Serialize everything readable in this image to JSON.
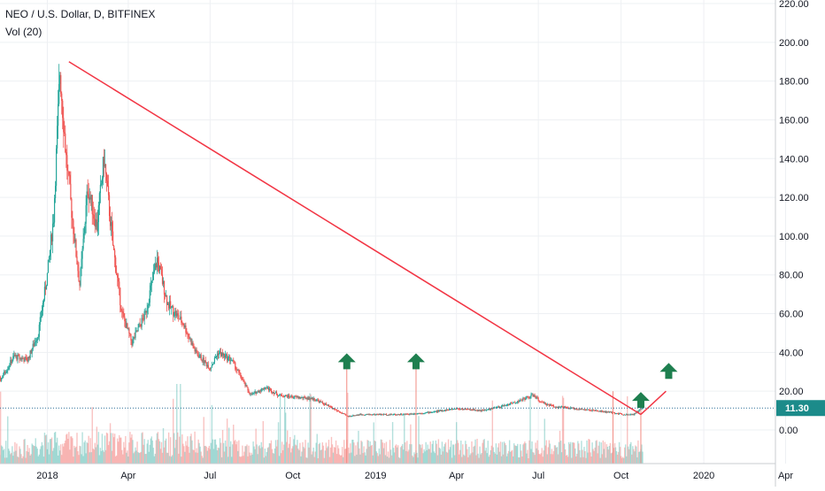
{
  "legend": {
    "symbol_line": "NEO / U.S. Dollar, D, BITFINEX",
    "volume_line": "Vol (20)"
  },
  "colors": {
    "up": "#26a69a",
    "down": "#ef5350",
    "trendline": "#f23645",
    "arrow": "#1e7f4f",
    "price_line": "#2a6f97",
    "grid": "#eef0f3",
    "axis_text": "#131722",
    "last_price_bg": "#1c8b8a"
  },
  "chart_data": {
    "type": "candlestick",
    "title": "NEO / U.S. Dollar, D, BITFINEX",
    "indicators": [
      "Vol (20)"
    ],
    "x_tick_labels": [
      "2018",
      "Apr",
      "Jul",
      "Oct",
      "2019",
      "Apr",
      "Jul",
      "Oct",
      "2020",
      "Apr"
    ],
    "y_tick_labels": [
      "0.00",
      "20.00",
      "40.00",
      "60.00",
      "80.00",
      "100.00",
      "120.00",
      "140.00",
      "160.00",
      "180.00",
      "200.00",
      "220.00"
    ],
    "y_range": [
      -10,
      222
    ],
    "last_price": 11.3,
    "last_price_label": "11.30",
    "price_path": [
      [
        "2017-10-01",
        30
      ],
      [
        "2017-10-20",
        29
      ],
      [
        "2017-11-10",
        26
      ],
      [
        "2017-11-25",
        38
      ],
      [
        "2017-12-10",
        36
      ],
      [
        "2017-12-22",
        50
      ],
      [
        "2018-01-01",
        80
      ],
      [
        "2018-01-08",
        110
      ],
      [
        "2018-01-15",
        185
      ],
      [
        "2018-01-22",
        140
      ],
      [
        "2018-02-01",
        95
      ],
      [
        "2018-02-06",
        75
      ],
      [
        "2018-02-15",
        125
      ],
      [
        "2018-02-25",
        105
      ],
      [
        "2018-03-05",
        140
      ],
      [
        "2018-03-15",
        95
      ],
      [
        "2018-03-25",
        60
      ],
      [
        "2018-04-05",
        45
      ],
      [
        "2018-04-20",
        60
      ],
      [
        "2018-05-03",
        88
      ],
      [
        "2018-05-15",
        65
      ],
      [
        "2018-06-01",
        55
      ],
      [
        "2018-06-15",
        40
      ],
      [
        "2018-07-01",
        32
      ],
      [
        "2018-07-10",
        40
      ],
      [
        "2018-07-25",
        36
      ],
      [
        "2018-08-15",
        18
      ],
      [
        "2018-09-01",
        22
      ],
      [
        "2018-09-15",
        18
      ],
      [
        "2018-10-01",
        17
      ],
      [
        "2018-10-25",
        16
      ],
      [
        "2018-11-15",
        11
      ],
      [
        "2018-12-01",
        7
      ],
      [
        "2018-12-15",
        8
      ],
      [
        "2019-01-01",
        8
      ],
      [
        "2019-02-01",
        8
      ],
      [
        "2019-03-01",
        9
      ],
      [
        "2019-04-01",
        11
      ],
      [
        "2019-05-01",
        10
      ],
      [
        "2019-05-20",
        12
      ],
      [
        "2019-06-10",
        15
      ],
      [
        "2019-06-25",
        18
      ],
      [
        "2019-07-05",
        14
      ],
      [
        "2019-07-20",
        12
      ],
      [
        "2019-08-10",
        11
      ],
      [
        "2019-09-01",
        10
      ],
      [
        "2019-09-20",
        9
      ],
      [
        "2019-10-05",
        8
      ],
      [
        "2019-10-15",
        8
      ],
      [
        "2019-10-25",
        11.3
      ]
    ],
    "trendline": {
      "start": [
        "2018-01-25",
        190
      ],
      "end": [
        "2019-10-23",
        8
      ]
    },
    "trendline_extension": {
      "start": [
        "2019-10-23",
        8
      ],
      "end": [
        "2019-11-20",
        20
      ]
    },
    "signal_arrows": [
      {
        "date": "2018-11-30",
        "price": 35
      },
      {
        "date": "2019-02-15",
        "price": 35
      },
      {
        "date": "2019-10-23",
        "price": 15
      },
      {
        "date": "2019-11-23",
        "price": 30
      }
    ],
    "markers": [
      {
        "date": "2018-11-30",
        "top": 32
      },
      {
        "date": "2019-02-15",
        "top": 32
      },
      {
        "date": "2019-09-22",
        "top": 20
      },
      {
        "date": "2019-10-23",
        "top": 12
      }
    ]
  }
}
